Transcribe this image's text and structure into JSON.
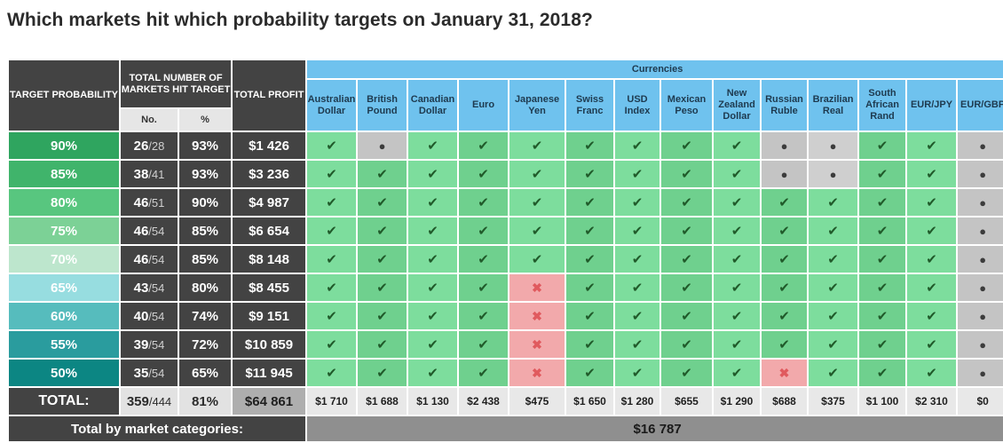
{
  "title": "Which markets hit which probability targets on January 31, 2018?",
  "headers": {
    "target_probability": "TARGET PROBABILITY",
    "total_markets_hit": "TOTAL NUMBER OF MARKETS HIT TARGET",
    "no": "No.",
    "pct": "%",
    "total_profit": "TOTAL PROFIT",
    "currencies": "Currencies"
  },
  "currencies": [
    "Australian Dollar",
    "British Pound",
    "Canadian Dollar",
    "Euro",
    "Japanese Yen",
    "Swiss Franc",
    "USD Index",
    "Mexican Peso",
    "New Zealand Dollar",
    "Russian Ruble",
    "Brazilian Real",
    "South African Rand",
    "EUR/JPY",
    "EUR/GBP"
  ],
  "symbols": {
    "hit": "✔",
    "miss": "✖",
    "none": "●"
  },
  "rows": [
    {
      "prob": "90%",
      "hit": "26",
      "total": "/28",
      "pct": "93%",
      "profit": "$1 426",
      "color": "#2fa55f",
      "cells": [
        "hit",
        "none",
        "hit",
        "hit",
        "hit",
        "hit",
        "hit",
        "hit",
        "hit",
        "none",
        "none",
        "hit",
        "hit",
        "none"
      ]
    },
    {
      "prob": "85%",
      "hit": "38",
      "total": "/41",
      "pct": "93%",
      "profit": "$3 236",
      "color": "#40b46b",
      "cells": [
        "hit",
        "hit",
        "hit",
        "hit",
        "hit",
        "hit",
        "hit",
        "hit",
        "hit",
        "none",
        "none",
        "hit",
        "hit",
        "none"
      ]
    },
    {
      "prob": "80%",
      "hit": "46",
      "total": "/51",
      "pct": "90%",
      "profit": "$4 987",
      "color": "#58c67f",
      "cells": [
        "hit",
        "hit",
        "hit",
        "hit",
        "hit",
        "hit",
        "hit",
        "hit",
        "hit",
        "hit",
        "hit",
        "hit",
        "hit",
        "none"
      ]
    },
    {
      "prob": "75%",
      "hit": "46",
      "total": "/54",
      "pct": "85%",
      "profit": "$6 654",
      "color": "#7cd196",
      "cells": [
        "hit",
        "hit",
        "hit",
        "hit",
        "hit",
        "hit",
        "hit",
        "hit",
        "hit",
        "hit",
        "hit",
        "hit",
        "hit",
        "none"
      ]
    },
    {
      "prob": "70%",
      "hit": "46",
      "total": "/54",
      "pct": "85%",
      "profit": "$8 148",
      "color": "#bde6cd",
      "cells": [
        "hit",
        "hit",
        "hit",
        "hit",
        "hit",
        "hit",
        "hit",
        "hit",
        "hit",
        "hit",
        "hit",
        "hit",
        "hit",
        "none"
      ]
    },
    {
      "prob": "65%",
      "hit": "43",
      "total": "/54",
      "pct": "80%",
      "profit": "$8 455",
      "color": "#97dde0",
      "cells": [
        "hit",
        "hit",
        "hit",
        "hit",
        "miss",
        "hit",
        "hit",
        "hit",
        "hit",
        "hit",
        "hit",
        "hit",
        "hit",
        "none"
      ]
    },
    {
      "prob": "60%",
      "hit": "40",
      "total": "/54",
      "pct": "74%",
      "profit": "$9 151",
      "color": "#56bcbd",
      "cells": [
        "hit",
        "hit",
        "hit",
        "hit",
        "miss",
        "hit",
        "hit",
        "hit",
        "hit",
        "hit",
        "hit",
        "hit",
        "hit",
        "none"
      ]
    },
    {
      "prob": "55%",
      "hit": "39",
      "total": "/54",
      "pct": "72%",
      "profit": "$10 859",
      "color": "#2a9c9e",
      "cells": [
        "hit",
        "hit",
        "hit",
        "hit",
        "miss",
        "hit",
        "hit",
        "hit",
        "hit",
        "hit",
        "hit",
        "hit",
        "hit",
        "none"
      ]
    },
    {
      "prob": "50%",
      "hit": "35",
      "total": "/54",
      "pct": "65%",
      "profit": "$11 945",
      "color": "#0c8683",
      "cells": [
        "hit",
        "hit",
        "hit",
        "hit",
        "miss",
        "hit",
        "hit",
        "hit",
        "hit",
        "miss",
        "hit",
        "hit",
        "hit",
        "none"
      ]
    }
  ],
  "totals": {
    "label": "TOTAL:",
    "hit": "359",
    "total": "/444",
    "pct": "81%",
    "profit": "$64 861",
    "by_currency": [
      "$1 710",
      "$1 688",
      "$1 130",
      "$2 438",
      "$475",
      "$1 650",
      "$1 280",
      "$655",
      "$1 290",
      "$688",
      "$375",
      "$1 100",
      "$2 310",
      "$0"
    ]
  },
  "category": {
    "label": "Total by market categories:",
    "value": "$16 787"
  },
  "colors": {
    "dark_header": "#434343",
    "currency_header": "#6fc2ee",
    "hit_cell": "#7ddd9d",
    "miss_cell": "#f2a9ab",
    "none_cell": "#cfcfcf"
  }
}
